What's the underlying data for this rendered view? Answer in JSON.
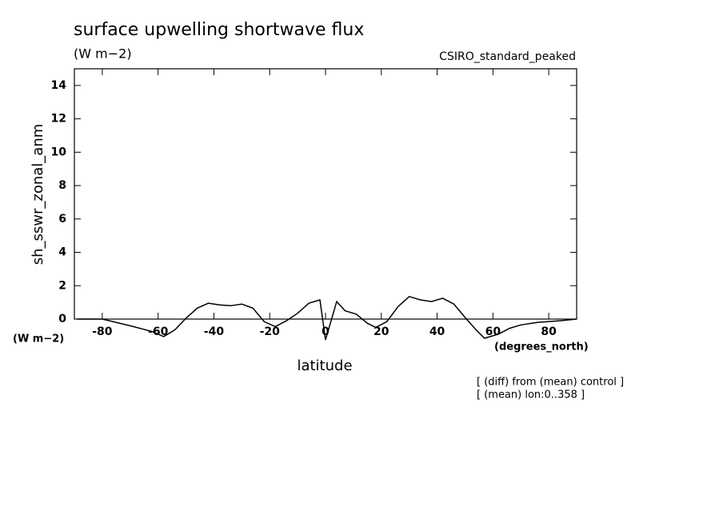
{
  "chart_data": {
    "type": "line",
    "title": "surface upwelling shortwave flux",
    "units": "(W m−2)",
    "subtitle": "CSIRO_standard_peaked",
    "ylabel": "sh_sswr_zonal_anm",
    "yunits": "(W m−2)",
    "xlabel": "latitude",
    "xunits": "(degrees_north)",
    "notes": [
      "[ (diff) from (mean) control ]",
      "[ (mean) lon:0..358 ]"
    ],
    "x": [
      -89,
      -80,
      -70,
      -62,
      -58,
      -54,
      -50,
      -46,
      -42,
      -38,
      -34,
      -30,
      -26,
      -22,
      -18,
      -14,
      -10,
      -6,
      -2,
      0,
      4,
      7,
      11,
      15,
      18,
      22,
      26,
      30,
      34,
      38,
      42,
      46,
      50,
      54,
      57,
      62,
      66,
      70,
      76,
      84,
      90
    ],
    "series": [
      {
        "color": "#000000",
        "values": [
          0,
          0,
          -0.4,
          -0.75,
          -1.05,
          -0.65,
          0.05,
          0.65,
          0.95,
          0.85,
          0.8,
          0.9,
          0.65,
          -0.15,
          -0.45,
          -0.1,
          0.35,
          0.95,
          1.15,
          -1.25,
          1.05,
          0.5,
          0.3,
          -0.25,
          -0.5,
          -0.15,
          0.75,
          1.35,
          1.15,
          1.05,
          1.25,
          0.9,
          0.1,
          -0.65,
          -1.15,
          -0.9,
          -0.55,
          -0.35,
          -0.2,
          -0.1,
          0
        ]
      }
    ],
    "xlim": [
      -90,
      90
    ],
    "xticks": [
      -80,
      -60,
      -40,
      -20,
      0,
      20,
      40,
      60,
      80
    ],
    "ylim": [
      0,
      15
    ],
    "yticks": [
      0,
      2,
      4,
      6,
      8,
      10,
      12,
      14
    ]
  }
}
